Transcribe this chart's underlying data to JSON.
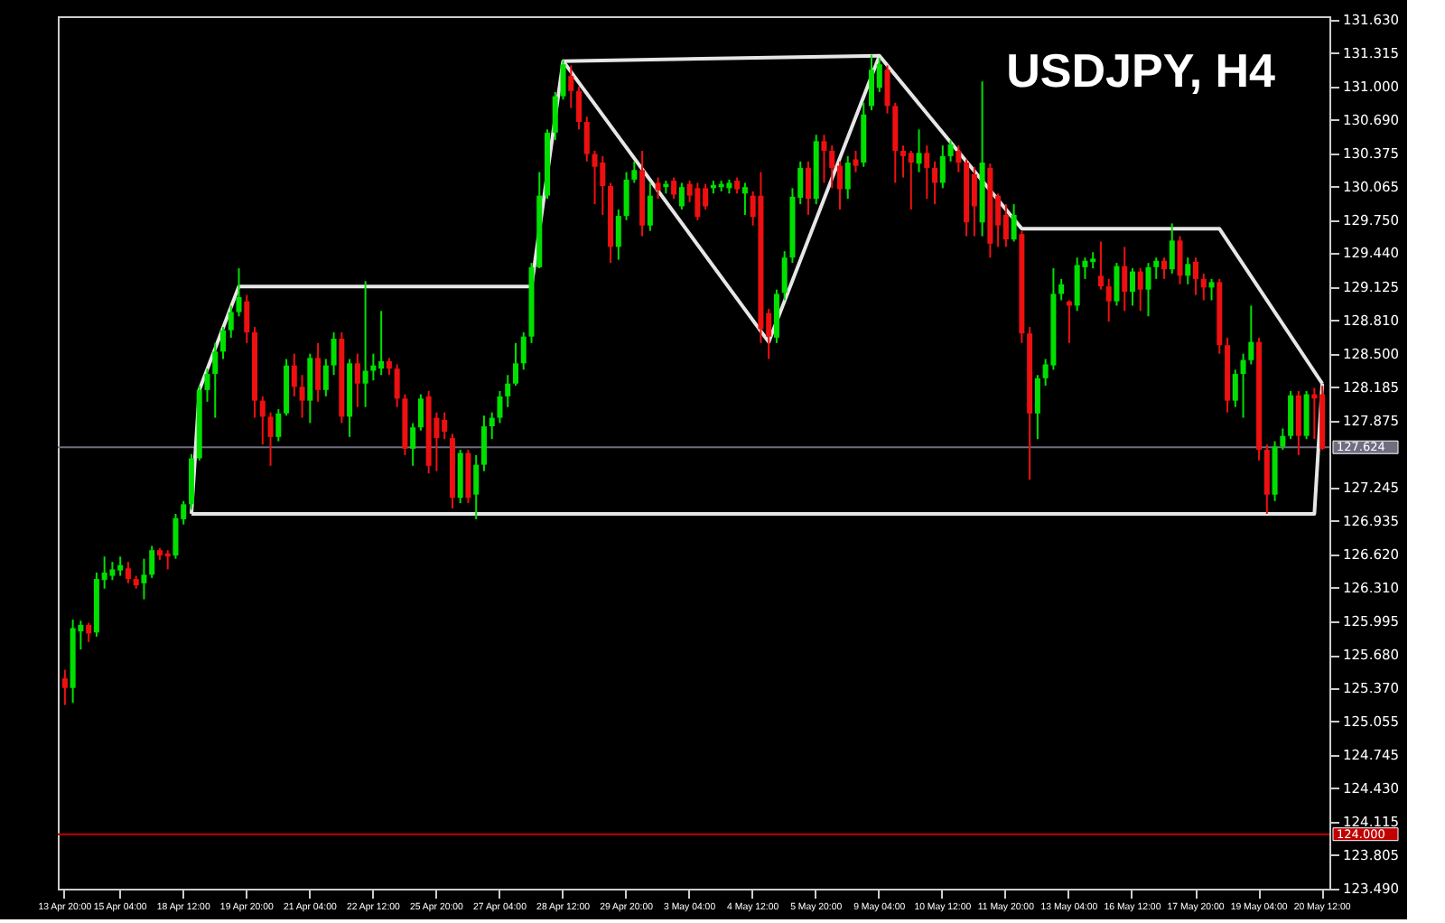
{
  "chart_data": {
    "type": "candlestick",
    "title": "USDJPY, H4",
    "categories": [
      "13 Apr 20:00",
      null,
      null,
      null,
      null,
      null,
      null,
      "15 Apr 04:00",
      null,
      null,
      null,
      null,
      null,
      null,
      null,
      "18 Apr 12:00",
      null,
      null,
      null,
      null,
      null,
      null,
      null,
      "19 Apr 20:00",
      null,
      null,
      null,
      null,
      null,
      null,
      null,
      "21 Apr 04:00",
      null,
      null,
      null,
      null,
      null,
      null,
      null,
      "22 Apr 12:00",
      null,
      null,
      null,
      null,
      null,
      null,
      null,
      "25 Apr 20:00",
      null,
      null,
      null,
      null,
      null,
      null,
      null,
      "27 Apr 04:00",
      null,
      null,
      null,
      null,
      null,
      null,
      null,
      "28 Apr 12:00",
      null,
      null,
      null,
      null,
      null,
      null,
      null,
      "29 Apr 20:00",
      null,
      null,
      null,
      null,
      null,
      null,
      null,
      "3 May 04:00",
      null,
      null,
      null,
      null,
      null,
      null,
      null,
      "4 May 12:00",
      null,
      null,
      null,
      null,
      null,
      null,
      null,
      "5 May 20:00",
      null,
      null,
      null,
      null,
      null,
      null,
      null,
      "9 May 04:00",
      null,
      null,
      null,
      null,
      null,
      null,
      null,
      "10 May 12:00",
      null,
      null,
      null,
      null,
      null,
      null,
      null,
      "11 May 20:00",
      null,
      null,
      null,
      null,
      null,
      null,
      null,
      "13 May 04:00",
      null,
      null,
      null,
      null,
      null,
      null,
      null,
      "16 May 12:00",
      null,
      null,
      null,
      null,
      null,
      null,
      null,
      "17 May 20:00",
      null,
      null,
      null,
      null,
      null,
      null,
      null,
      "19 May 04:00",
      null,
      null,
      null,
      null,
      null,
      null,
      null,
      "20 May 12:00"
    ],
    "ohlc": [
      [
        125.46,
        125.54,
        125.21,
        125.37
      ],
      [
        125.37,
        126.01,
        125.23,
        125.93
      ],
      [
        125.9,
        126.0,
        125.73,
        125.96
      ],
      [
        125.96,
        125.98,
        125.8,
        125.88
      ],
      [
        125.89,
        126.45,
        125.85,
        126.39
      ],
      [
        126.38,
        126.6,
        126.3,
        126.45
      ],
      [
        126.42,
        126.55,
        126.38,
        126.48
      ],
      [
        126.47,
        126.6,
        126.42,
        126.52
      ],
      [
        126.49,
        126.55,
        126.35,
        126.39
      ],
      [
        126.39,
        126.42,
        126.3,
        126.33
      ],
      [
        126.35,
        126.58,
        126.2,
        126.43
      ],
      [
        126.43,
        126.7,
        126.4,
        126.66
      ],
      [
        126.66,
        126.68,
        126.57,
        126.61
      ],
      [
        126.63,
        126.66,
        126.48,
        126.6
      ],
      [
        126.61,
        127.0,
        126.58,
        126.96
      ],
      [
        126.95,
        127.12,
        126.9,
        127.09
      ],
      [
        127.09,
        127.56,
        127.04,
        127.52
      ],
      [
        127.52,
        128.2,
        127.5,
        128.16
      ],
      [
        128.16,
        128.36,
        128.05,
        128.31
      ],
      [
        128.31,
        128.6,
        127.9,
        128.52
      ],
      [
        128.52,
        128.75,
        128.45,
        128.72
      ],
      [
        128.72,
        128.95,
        128.65,
        128.89
      ],
      [
        128.89,
        129.3,
        128.85,
        129.03
      ],
      [
        128.99,
        129.05,
        128.6,
        128.7
      ],
      [
        128.7,
        128.75,
        127.9,
        128.06
      ],
      [
        128.06,
        128.1,
        127.65,
        127.91
      ],
      [
        127.91,
        127.95,
        127.45,
        127.72
      ],
      [
        127.72,
        127.98,
        127.68,
        127.94
      ],
      [
        127.94,
        128.45,
        127.92,
        128.39
      ],
      [
        128.39,
        128.5,
        128.1,
        128.19
      ],
      [
        128.19,
        128.3,
        127.9,
        128.06
      ],
      [
        128.06,
        128.5,
        127.85,
        128.46
      ],
      [
        128.46,
        128.6,
        128.05,
        128.16
      ],
      [
        128.16,
        128.45,
        128.1,
        128.39
      ],
      [
        128.39,
        128.7,
        128.3,
        128.64
      ],
      [
        128.64,
        128.7,
        127.85,
        127.91
      ],
      [
        127.91,
        128.45,
        127.72,
        128.41
      ],
      [
        128.41,
        128.5,
        128.0,
        128.22
      ],
      [
        128.22,
        129.18,
        128.0,
        128.34
      ],
      [
        128.34,
        128.5,
        128.25,
        128.39
      ],
      [
        128.36,
        128.9,
        128.3,
        128.43
      ],
      [
        128.43,
        128.46,
        128.3,
        128.36
      ],
      [
        128.36,
        128.4,
        128.0,
        128.08
      ],
      [
        128.08,
        128.12,
        127.55,
        127.61
      ],
      [
        127.61,
        127.85,
        127.45,
        127.81
      ],
      [
        127.81,
        128.12,
        127.78,
        128.08
      ],
      [
        128.1,
        128.15,
        127.38,
        127.45
      ],
      [
        127.9,
        127.95,
        127.4,
        127.71
      ],
      [
        127.88,
        127.95,
        127.7,
        127.77
      ],
      [
        127.71,
        127.75,
        127.05,
        127.15
      ],
      [
        127.15,
        127.6,
        127.1,
        127.57
      ],
      [
        127.57,
        127.6,
        127.1,
        127.15
      ],
      [
        127.18,
        127.55,
        126.95,
        127.46
      ],
      [
        127.46,
        127.92,
        127.4,
        127.82
      ],
      [
        127.82,
        127.95,
        127.7,
        127.9
      ],
      [
        127.9,
        128.15,
        127.85,
        128.1
      ],
      [
        128.1,
        128.3,
        128.0,
        128.22
      ],
      [
        128.22,
        128.6,
        128.2,
        128.41
      ],
      [
        128.41,
        128.7,
        128.35,
        128.66
      ],
      [
        128.66,
        129.35,
        128.6,
        129.31
      ],
      [
        129.31,
        130.2,
        129.3,
        129.98
      ],
      [
        129.98,
        130.6,
        129.95,
        130.57
      ],
      [
        130.57,
        130.95,
        130.5,
        130.91
      ],
      [
        130.91,
        131.25,
        130.88,
        131.21
      ],
      [
        131.1,
        131.2,
        130.8,
        130.96
      ],
      [
        130.96,
        131.0,
        130.6,
        130.67
      ],
      [
        130.67,
        130.72,
        130.3,
        130.37
      ],
      [
        130.37,
        130.4,
        129.9,
        130.25
      ],
      [
        130.29,
        130.35,
        129.8,
        130.07
      ],
      [
        130.07,
        130.1,
        129.35,
        129.5
      ],
      [
        129.5,
        129.85,
        129.38,
        129.79
      ],
      [
        129.79,
        130.2,
        129.75,
        130.13
      ],
      [
        130.13,
        130.3,
        130.1,
        130.22
      ],
      [
        130.22,
        130.4,
        129.6,
        129.7
      ],
      [
        129.7,
        130.1,
        129.65,
        129.98
      ],
      [
        130.1,
        130.15,
        129.95,
        130.03
      ],
      [
        130.06,
        130.12,
        130.0,
        130.09
      ],
      [
        130.12,
        130.15,
        129.95,
        129.99
      ],
      [
        129.88,
        130.1,
        129.85,
        130.06
      ],
      [
        130.09,
        130.12,
        129.92,
        129.98
      ],
      [
        130.05,
        130.1,
        129.75,
        129.78
      ],
      [
        130.05,
        130.09,
        129.85,
        129.88
      ],
      [
        130.05,
        130.12,
        130.0,
        130.08
      ],
      [
        130.06,
        130.12,
        130.02,
        130.09
      ],
      [
        130.05,
        130.13,
        130.0,
        130.1
      ],
      [
        130.12,
        130.15,
        130.0,
        130.04
      ],
      [
        130.0,
        130.1,
        129.8,
        130.06
      ],
      [
        129.98,
        130.02,
        129.7,
        129.78
      ],
      [
        129.98,
        130.2,
        128.6,
        128.73
      ],
      [
        128.88,
        128.92,
        128.45,
        128.66
      ],
      [
        128.65,
        129.1,
        128.6,
        129.06
      ],
      [
        129.07,
        129.46,
        129.0,
        129.4
      ],
      [
        129.4,
        130.05,
        129.35,
        129.97
      ],
      [
        129.96,
        130.3,
        129.9,
        130.24
      ],
      [
        130.24,
        130.3,
        129.8,
        129.95
      ],
      [
        129.95,
        130.55,
        129.9,
        130.49
      ],
      [
        130.49,
        130.55,
        130.1,
        130.4
      ],
      [
        130.4,
        130.45,
        130.05,
        130.24
      ],
      [
        130.26,
        130.3,
        129.85,
        130.04
      ],
      [
        130.04,
        130.35,
        129.95,
        130.29
      ],
      [
        130.32,
        130.4,
        130.2,
        130.26
      ],
      [
        130.29,
        130.85,
        130.25,
        130.74
      ],
      [
        130.82,
        131.3,
        130.78,
        131.16
      ],
      [
        130.99,
        131.27,
        130.95,
        131.21
      ],
      [
        131.16,
        131.2,
        130.75,
        130.82
      ],
      [
        130.82,
        130.85,
        130.1,
        130.4
      ],
      [
        130.4,
        130.45,
        130.15,
        130.35
      ],
      [
        130.38,
        130.4,
        129.85,
        130.29
      ],
      [
        130.28,
        130.6,
        130.2,
        130.38
      ],
      [
        130.38,
        130.45,
        129.95,
        130.24
      ],
      [
        130.24,
        130.3,
        129.9,
        130.1
      ],
      [
        130.1,
        130.45,
        130.05,
        130.35
      ],
      [
        130.35,
        130.5,
        130.3,
        130.46
      ],
      [
        130.4,
        130.45,
        130.2,
        130.29
      ],
      [
        130.29,
        130.32,
        129.6,
        129.73
      ],
      [
        130.18,
        130.25,
        129.6,
        129.88
      ],
      [
        129.73,
        131.05,
        129.6,
        130.29
      ],
      [
        130.24,
        130.28,
        129.4,
        129.53
      ],
      [
        129.98,
        130.0,
        129.5,
        129.7
      ],
      [
        129.8,
        129.9,
        129.5,
        129.57
      ],
      [
        129.57,
        129.9,
        129.55,
        129.8
      ],
      [
        129.62,
        129.65,
        128.6,
        128.69
      ],
      [
        128.69,
        128.75,
        127.32,
        127.94
      ],
      [
        127.94,
        128.3,
        127.7,
        128.27
      ],
      [
        128.27,
        128.45,
        128.2,
        128.4
      ],
      [
        128.39,
        129.3,
        128.35,
        129.06
      ],
      [
        129.06,
        129.2,
        129.0,
        129.15
      ],
      [
        128.99,
        129.0,
        128.6,
        128.95
      ],
      [
        128.95,
        129.4,
        128.9,
        129.33
      ],
      [
        129.31,
        129.4,
        129.2,
        129.37
      ],
      [
        129.36,
        129.45,
        129.3,
        129.39
      ],
      [
        129.23,
        129.55,
        129.1,
        129.13
      ],
      [
        129.13,
        129.2,
        128.8,
        128.99
      ],
      [
        128.99,
        129.35,
        128.95,
        129.32
      ],
      [
        129.32,
        129.5,
        128.9,
        129.08
      ],
      [
        129.08,
        129.3,
        128.95,
        129.27
      ],
      [
        129.27,
        129.3,
        128.9,
        129.1
      ],
      [
        129.1,
        129.35,
        128.85,
        129.31
      ],
      [
        129.31,
        129.4,
        129.2,
        129.37
      ],
      [
        129.37,
        129.4,
        129.2,
        129.29
      ],
      [
        129.29,
        129.72,
        129.25,
        129.56
      ],
      [
        129.56,
        129.6,
        129.15,
        129.23
      ],
      [
        129.23,
        129.4,
        129.15,
        129.34
      ],
      [
        129.36,
        129.4,
        129.05,
        129.2
      ],
      [
        129.2,
        129.25,
        129.0,
        129.12
      ],
      [
        129.12,
        129.2,
        129.0,
        129.17
      ],
      [
        129.17,
        129.2,
        128.5,
        128.58
      ],
      [
        128.58,
        128.65,
        127.95,
        128.06
      ],
      [
        128.06,
        128.35,
        128.0,
        128.31
      ],
      [
        128.31,
        128.5,
        127.9,
        128.44
      ],
      [
        128.44,
        128.95,
        128.4,
        128.61
      ],
      [
        128.61,
        128.65,
        127.5,
        127.6
      ],
      [
        127.6,
        127.65,
        127.0,
        127.18
      ],
      [
        127.18,
        127.68,
        127.12,
        127.63
      ],
      [
        127.63,
        127.8,
        127.6,
        127.73
      ],
      [
        127.73,
        128.15,
        127.7,
        128.11
      ],
      [
        128.11,
        128.15,
        127.55,
        127.73
      ],
      [
        127.73,
        128.15,
        127.7,
        128.12
      ],
      [
        128.12,
        128.18,
        127.7,
        128.08
      ],
      [
        128.12,
        128.2,
        127.6,
        127.61
      ]
    ],
    "ylim": [
      123.49,
      131.66
    ],
    "yticks": [
      {
        "value": 131.63,
        "label": "131.630"
      },
      {
        "value": 131.315,
        "label": "131.315"
      },
      {
        "value": 131.0,
        "label": "131.000"
      },
      {
        "value": 130.69,
        "label": "130.690"
      },
      {
        "value": 130.375,
        "label": "130.375"
      },
      {
        "value": 130.065,
        "label": "130.065"
      },
      {
        "value": 129.75,
        "label": "129.750"
      },
      {
        "value": 129.44,
        "label": "129.440"
      },
      {
        "value": 129.125,
        "label": "129.125"
      },
      {
        "value": 128.81,
        "label": "128.810"
      },
      {
        "value": 128.5,
        "label": "128.500"
      },
      {
        "value": 128.185,
        "label": "128.185"
      },
      {
        "value": 127.875,
        "label": "127.875"
      },
      {
        "value": 127.245,
        "label": "127.245"
      },
      {
        "value": 126.935,
        "label": "126.935"
      },
      {
        "value": 126.62,
        "label": "126.620"
      },
      {
        "value": 126.31,
        "label": "126.310"
      },
      {
        "value": 125.995,
        "label": "125.995"
      },
      {
        "value": 125.68,
        "label": "125.680"
      },
      {
        "value": 125.37,
        "label": "125.370"
      },
      {
        "value": 125.055,
        "label": "125.055"
      },
      {
        "value": 124.745,
        "label": "124.745"
      },
      {
        "value": 124.43,
        "label": "124.430"
      },
      {
        "value": 124.115,
        "label": "124.115"
      },
      {
        "value": 123.805,
        "label": "123.805"
      },
      {
        "value": 123.49,
        "label": "123.490"
      }
    ],
    "ref_lines": [
      {
        "axis": "y",
        "value": 127.624,
        "label": "127.624",
        "color": "#6e6e80"
      },
      {
        "axis": "y",
        "value": 124.0,
        "label": "124.000",
        "color": "#c00000"
      }
    ],
    "series": [
      {
        "type": "line",
        "color": "#e6e6e6",
        "values": [
          null,
          null,
          null,
          null,
          null,
          null,
          null,
          null,
          null,
          null,
          null,
          null,
          null,
          null,
          null,
          null,
          127.0,
          128.16,
          null,
          null,
          null,
          null,
          129.13,
          null,
          null,
          null,
          null,
          null,
          null,
          null,
          null,
          null,
          null,
          null,
          null,
          null,
          null,
          null,
          null,
          null,
          null,
          null,
          null,
          null,
          null,
          null,
          null,
          null,
          null,
          null,
          null,
          null,
          null,
          null,
          null,
          null,
          null,
          null,
          null,
          129.13,
          null,
          null,
          null,
          131.24,
          null,
          null,
          null,
          null,
          null,
          null,
          null,
          null,
          null,
          null,
          null,
          null,
          null,
          null,
          null,
          null,
          null,
          null,
          null,
          null,
          null,
          null,
          null,
          null,
          null,
          128.61,
          null,
          null,
          null,
          null,
          null,
          null,
          null,
          null,
          null,
          null,
          null,
          null,
          null,
          131.29,
          null,
          null,
          null,
          null,
          null,
          null,
          null,
          null,
          null,
          null,
          null,
          null,
          null,
          null,
          null,
          null,
          null,
          129.67,
          null,
          null,
          null,
          null,
          null,
          null,
          null,
          null,
          null,
          null,
          null,
          null,
          null,
          null,
          null,
          null,
          null,
          null,
          null,
          null,
          null,
          null,
          null,
          null,
          129.67,
          null,
          null,
          null,
          null,
          null,
          null,
          null,
          null,
          null,
          null,
          null,
          null,
          128.22
        ]
      },
      {
        "type": "line",
        "color": "#e6e6e6",
        "values": [
          null,
          null,
          null,
          null,
          null,
          null,
          null,
          null,
          null,
          null,
          null,
          null,
          null,
          null,
          null,
          null,
          127.0,
          null,
          null,
          null,
          null,
          null,
          null,
          null,
          null,
          null,
          null,
          null,
          null,
          null,
          null,
          null,
          null,
          null,
          null,
          null,
          null,
          null,
          null,
          null,
          null,
          null,
          null,
          null,
          null,
          null,
          null,
          null,
          null,
          null,
          null,
          null,
          null,
          null,
          null,
          null,
          null,
          null,
          null,
          null,
          null,
          null,
          null,
          null,
          null,
          null,
          null,
          null,
          null,
          null,
          null,
          null,
          null,
          null,
          null,
          null,
          null,
          null,
          null,
          null,
          null,
          null,
          null,
          null,
          null,
          null,
          null,
          null,
          null,
          null,
          null,
          null,
          null,
          null,
          null,
          null,
          null,
          null,
          null,
          null,
          null,
          null,
          null,
          null,
          null,
          null,
          null,
          null,
          null,
          null,
          null,
          null,
          null,
          null,
          null,
          null,
          null,
          null,
          null,
          null,
          null,
          null,
          null,
          null,
          null,
          null,
          null,
          null,
          null,
          null,
          null,
          null,
          null,
          null,
          null,
          null,
          null,
          null,
          null,
          null,
          null,
          null,
          null,
          null,
          null,
          null,
          null,
          null,
          null,
          null,
          null,
          null,
          null,
          null,
          null,
          null,
          null,
          null,
          127.0,
          128.22
        ]
      },
      {
        "type": "line",
        "color": "#e6e6e6",
        "values": [
          null,
          null,
          null,
          null,
          null,
          null,
          null,
          null,
          null,
          null,
          null,
          null,
          null,
          null,
          null,
          null,
          null,
          null,
          null,
          null,
          null,
          null,
          null,
          null,
          null,
          null,
          null,
          null,
          null,
          null,
          null,
          null,
          null,
          null,
          null,
          null,
          null,
          null,
          null,
          null,
          null,
          null,
          null,
          null,
          null,
          null,
          null,
          null,
          null,
          null,
          null,
          null,
          null,
          null,
          null,
          null,
          null,
          null,
          null,
          null,
          null,
          null,
          null,
          131.24,
          null,
          null,
          null,
          null,
          null,
          null,
          null,
          null,
          null,
          null,
          null,
          null,
          null,
          null,
          null,
          null,
          null,
          null,
          null,
          null,
          null,
          null,
          null,
          null,
          null,
          null,
          null,
          null,
          null,
          null,
          null,
          null,
          null,
          null,
          null,
          null,
          null,
          null,
          null,
          131.29,
          null,
          null,
          null,
          null,
          null,
          null,
          null,
          null,
          null,
          null,
          null,
          null,
          null,
          null,
          null,
          null,
          null,
          null,
          null,
          null,
          null,
          null,
          null,
          null,
          null,
          null,
          null,
          null,
          null,
          null,
          null,
          null,
          null,
          null,
          null,
          null,
          null,
          null,
          null,
          null,
          null,
          null,
          null,
          null,
          null,
          null,
          null,
          null,
          null,
          null,
          null,
          null,
          null,
          null,
          null,
          null
        ]
      }
    ],
    "grid": false
  }
}
